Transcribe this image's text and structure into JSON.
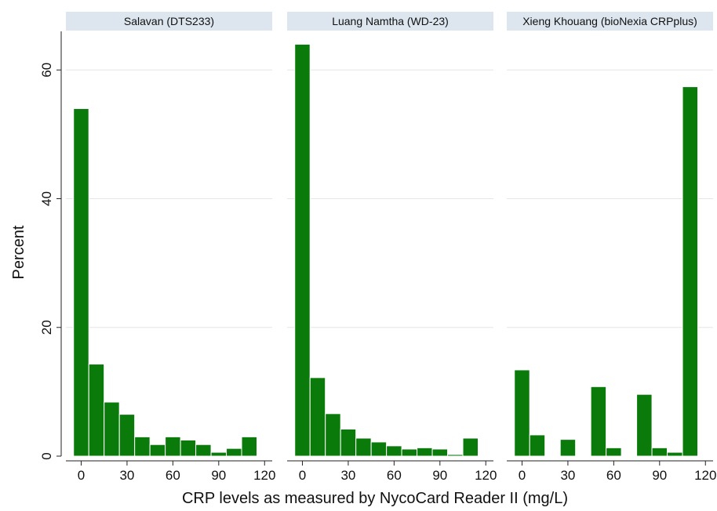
{
  "chart_data": {
    "type": "bar",
    "ylabel": "Percent",
    "xlabel": "CRP levels as measured by  NycoCard Reader II (mg/L)",
    "ylim": [
      0,
      66
    ],
    "yticks": [
      0,
      20,
      40,
      60
    ],
    "xlim": [
      -10,
      125
    ],
    "xticks": [
      0,
      30,
      60,
      90,
      120
    ],
    "bin_width": 10,
    "grid": true,
    "bar_color": "#0a7a0a",
    "panels": [
      {
        "title": "Salavan (DTS233)",
        "bins": [
          {
            "x": 0,
            "value": 54
          },
          {
            "x": 10,
            "value": 14.3
          },
          {
            "x": 20,
            "value": 8.4
          },
          {
            "x": 30,
            "value": 6.5
          },
          {
            "x": 40,
            "value": 3.0
          },
          {
            "x": 50,
            "value": 1.8
          },
          {
            "x": 60,
            "value": 3.0
          },
          {
            "x": 70,
            "value": 2.5
          },
          {
            "x": 80,
            "value": 1.8
          },
          {
            "x": 90,
            "value": 0.6
          },
          {
            "x": 100,
            "value": 1.2
          },
          {
            "x": 110,
            "value": 3.0
          }
        ]
      },
      {
        "title": "Luang Namtha (WD-23)",
        "bins": [
          {
            "x": 0,
            "value": 64
          },
          {
            "x": 10,
            "value": 12.2
          },
          {
            "x": 20,
            "value": 6.6
          },
          {
            "x": 30,
            "value": 4.2
          },
          {
            "x": 40,
            "value": 2.8
          },
          {
            "x": 50,
            "value": 2.2
          },
          {
            "x": 60,
            "value": 1.6
          },
          {
            "x": 70,
            "value": 1.1
          },
          {
            "x": 80,
            "value": 1.3
          },
          {
            "x": 90,
            "value": 1.1
          },
          {
            "x": 100,
            "value": 0.25
          },
          {
            "x": 110,
            "value": 2.8
          }
        ]
      },
      {
        "title": "Xieng Khouang (bioNexia CRPplus)",
        "bins": [
          {
            "x": 0,
            "value": 13.4
          },
          {
            "x": 10,
            "value": 3.3
          },
          {
            "x": 30,
            "value": 2.6
          },
          {
            "x": 50,
            "value": 10.8
          },
          {
            "x": 60,
            "value": 1.3
          },
          {
            "x": 80,
            "value": 9.6
          },
          {
            "x": 90,
            "value": 1.3
          },
          {
            "x": 100,
            "value": 0.6
          },
          {
            "x": 110,
            "value": 57.4
          }
        ]
      }
    ]
  }
}
